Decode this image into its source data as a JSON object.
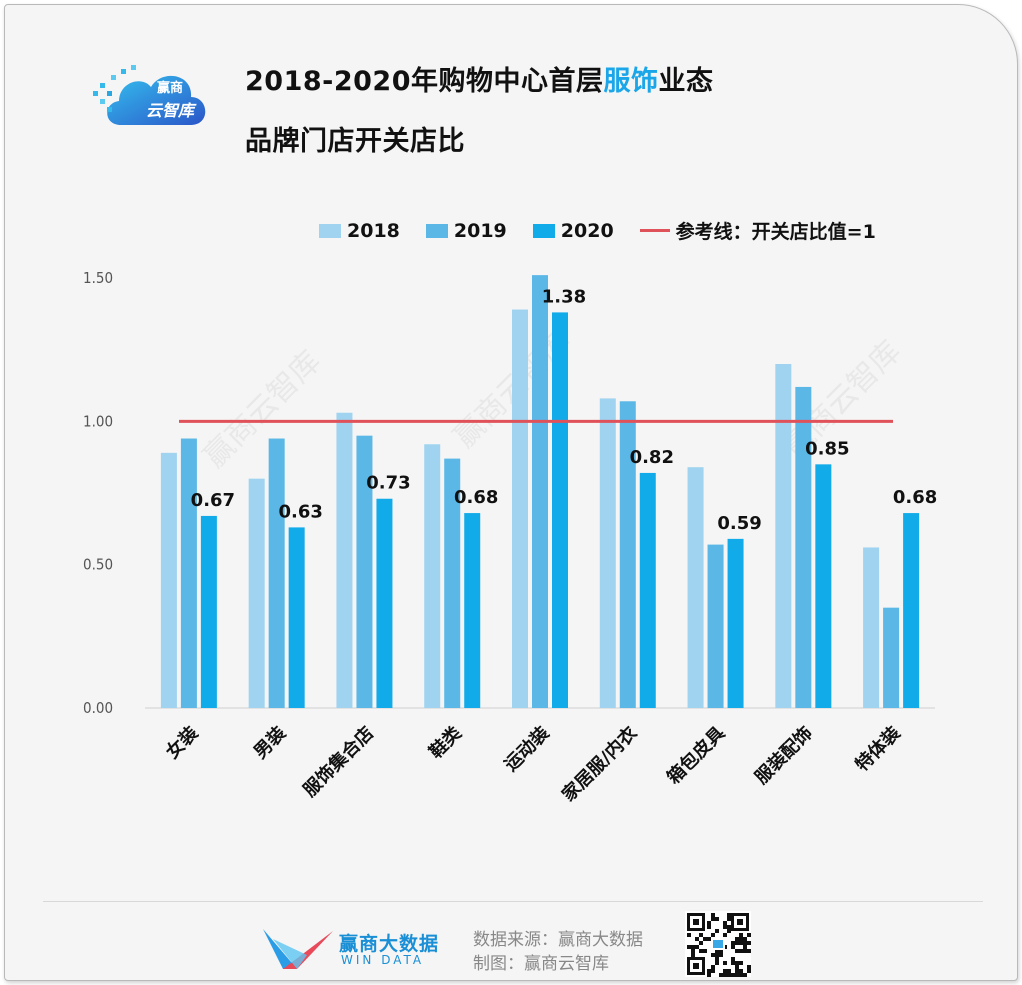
{
  "header": {
    "logo": {
      "line1": "赢商",
      "line2": "云智库"
    },
    "title_part1": "2018-2020年购物中心首层",
    "title_accent": "服饰",
    "title_part2": "业态",
    "title_line2": "品牌门店开关店比"
  },
  "watermark": "赢商云智库",
  "footer": {
    "brand_name": "赢商大数据",
    "brand_en": "WIN DATA",
    "source": "数据来源：赢商大数据",
    "made_by": "制图：赢商云智库"
  },
  "colors": {
    "s2018": "#9fd3ef",
    "s2019": "#5ab7e6",
    "s2020": "#12abea",
    "reference": "#e0525a",
    "accent": "#1aa6e8"
  },
  "chart_data": {
    "type": "bar",
    "title": "2018-2020年购物中心首层服饰业态品牌门店开关店比",
    "categories": [
      "女装",
      "男装",
      "服饰集合店",
      "鞋类",
      "运动装",
      "家居服/内衣",
      "箱包皮具",
      "服装配饰",
      "特体装"
    ],
    "series": [
      {
        "name": "2018",
        "values": [
          0.89,
          0.8,
          1.03,
          0.92,
          1.39,
          1.08,
          0.84,
          1.2,
          0.56
        ]
      },
      {
        "name": "2019",
        "values": [
          0.94,
          0.94,
          0.95,
          0.87,
          1.51,
          1.07,
          0.57,
          1.12,
          0.35
        ]
      },
      {
        "name": "2020",
        "values": [
          0.67,
          0.63,
          0.73,
          0.68,
          1.38,
          0.82,
          0.59,
          0.85,
          0.68
        ]
      }
    ],
    "data_labels": [
      "0.67",
      "0.63",
      "0.73",
      "0.68",
      "1.38",
      "0.82",
      "0.59",
      "0.85",
      "0.68"
    ],
    "reference_line": {
      "value": 1,
      "label": "参考线：开关店比值=1"
    },
    "yticks": [
      "0.00",
      "0.50",
      "1.00",
      "1.50"
    ],
    "ylim": [
      0,
      1.5
    ],
    "legend_position": "top"
  }
}
